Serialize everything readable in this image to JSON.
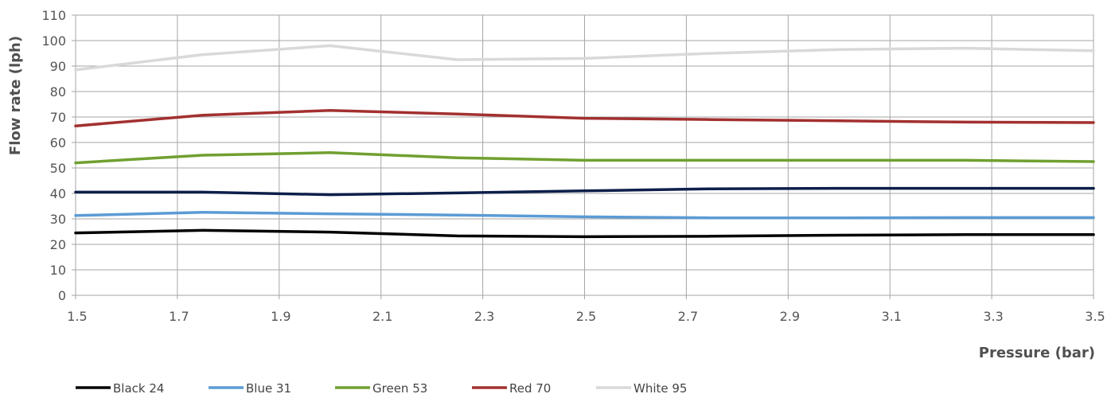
{
  "chart_data": {
    "type": "line",
    "title": "",
    "xlabel": "Pressure (bar)",
    "ylabel": "Flow rate (lph)",
    "xlim": [
      1.5,
      3.5
    ],
    "ylim": [
      0,
      110
    ],
    "x_ticks": [
      "1.5",
      "1.7",
      "1.9",
      "2.1",
      "2.3",
      "2.5",
      "2.7",
      "2.9",
      "3.1",
      "3.3",
      "3.5"
    ],
    "y_ticks": [
      "0",
      "10",
      "20",
      "30",
      "40",
      "50",
      "60",
      "70",
      "80",
      "90",
      "100",
      "110"
    ],
    "grid": true,
    "legend_position": "bottom",
    "x": [
      1.5,
      1.75,
      2.0,
      2.25,
      2.5,
      2.75,
      3.0,
      3.25,
      3.5
    ],
    "series": [
      {
        "name": "Black 24",
        "color": "#000000",
        "values": [
          24.5,
          25.5,
          24.8,
          23.3,
          23.0,
          23.2,
          23.6,
          23.8,
          23.8
        ]
      },
      {
        "name": "Blue 31",
        "color": "#5b9bd5",
        "values": [
          31.3,
          32.6,
          32.0,
          31.5,
          30.8,
          30.4,
          30.4,
          30.5,
          30.5
        ]
      },
      {
        "name": "Green 53",
        "color": "#70a030",
        "values": [
          52.0,
          55.0,
          56.0,
          54.0,
          53.0,
          53.0,
          53.0,
          53.0,
          52.5
        ]
      },
      {
        "name": "Red 70",
        "color": "#a33030",
        "values": [
          66.5,
          70.7,
          72.6,
          71.2,
          69.5,
          69.0,
          68.5,
          68.0,
          67.8
        ]
      },
      {
        "name": "White 95",
        "color": "#d9d9d9",
        "values": [
          88.5,
          94.5,
          98.0,
          92.5,
          93.0,
          95.0,
          96.5,
          97.0,
          96.0
        ]
      },
      {
        "name": "",
        "color": "#0d1f4a",
        "values": [
          40.5,
          40.5,
          39.5,
          40.2,
          41.0,
          41.8,
          42.0,
          42.0,
          42.0
        ]
      }
    ]
  }
}
